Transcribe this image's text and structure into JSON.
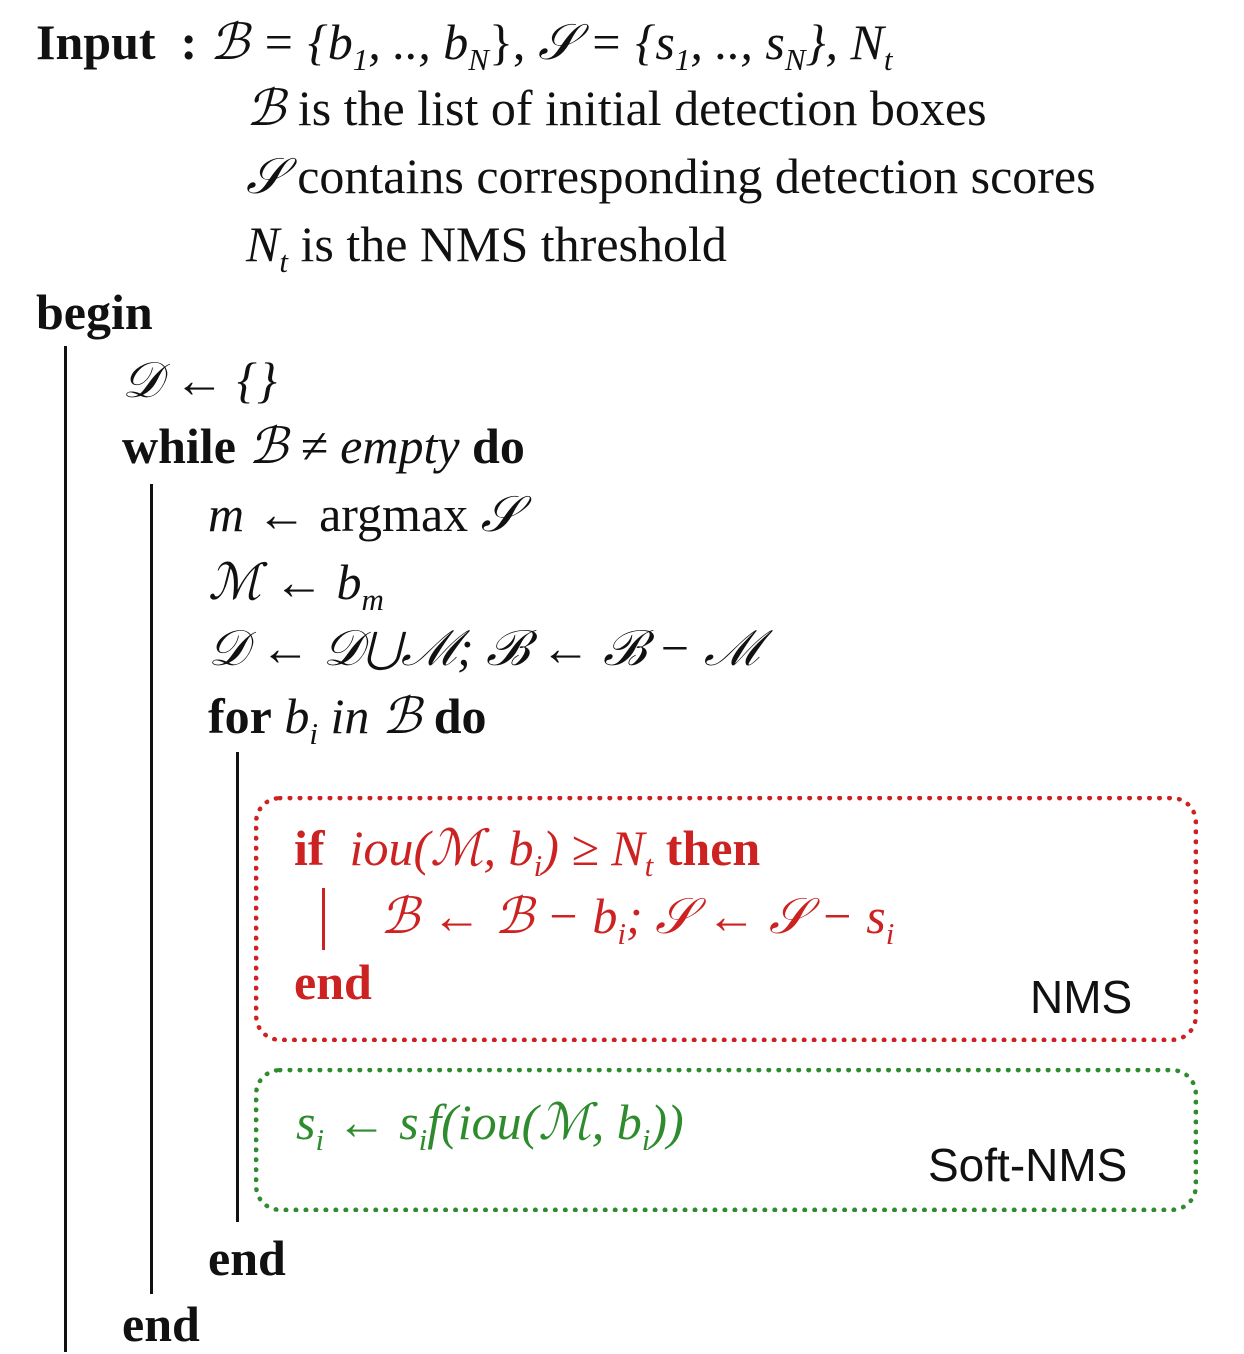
{
  "algorithm": {
    "input_label": "Input",
    "input_colon": ":",
    "input_B_sym": "ℬ",
    "input_eq1": " = {b",
    "sub_1": "1",
    "input_mid": ", .., b",
    "sub_N": "N",
    "input_close1": "}, ",
    "input_S_sym": "𝒮",
    "input_eq2": " = {s",
    "input_mid2": ", .., s",
    "input_close2": "}, N",
    "sub_t": "t",
    "desc_B_sym": "ℬ",
    "desc_B_text": " is the list of initial detection boxes",
    "desc_S_sym": "𝒮",
    "desc_S_text": " contains corresponding detection scores",
    "desc_N_sym": "N",
    "desc_N_text": " is the NMS threshold",
    "begin": "begin",
    "d_init": "𝒟 ← {}",
    "while_kw": "while",
    "while_cond": " ℬ ≠ ",
    "while_empty": "empty",
    "do_kw": "do",
    "m_sym": "m",
    "m_arrow": " ← argmax ",
    "m_S": "𝒮",
    "M_assign": "ℳ ← b",
    "sub_m": "m",
    "D_update": "𝒟 ← 𝒟⋃ℳ; ℬ ← ℬ − ℳ",
    "for_kw": "for",
    "for_b": " b",
    "sub_i": "i",
    "for_in": " in ",
    "for_B": "ℬ",
    "for_do": "do",
    "end_label": "end"
  },
  "nms": {
    "if_kw": "if",
    "if_cond": "iou(ℳ, b",
    "if_ge": ") ≥ N",
    "then_kw": "then",
    "body_a": "ℬ ← ℬ − b",
    "body_b": "; 𝒮 ← 𝒮 − s",
    "end_kw": "end",
    "label": "NMS",
    "color": "#cc2222"
  },
  "soft_nms": {
    "s_a": "s",
    "s_b": " ← s",
    "s_c": "f(iou(ℳ, b",
    "s_d": "))",
    "label": "Soft-NMS",
    "color": "#2e8b2e"
  }
}
